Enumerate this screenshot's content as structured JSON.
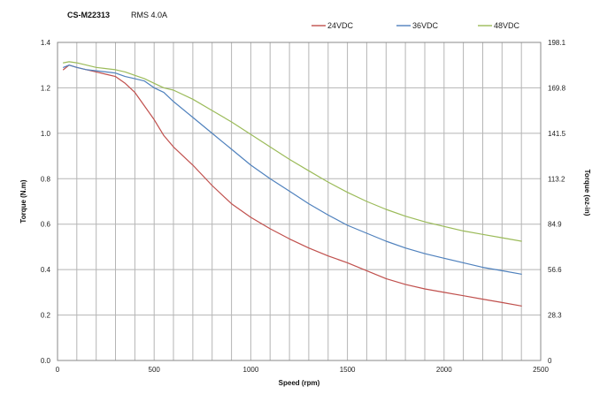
{
  "header": {
    "model": "CS-M22313",
    "rms": "RMS 4.0A"
  },
  "chart_data": {
    "type": "line",
    "xlabel": "Speed (rpm)",
    "ylabel": "Torque (N.m)",
    "y2label": "Torque (oz-in)",
    "xlim": [
      0,
      2500
    ],
    "ylim": [
      0,
      1.4
    ],
    "x_ticks": [
      "0",
      "500",
      "1000",
      "1500",
      "2000",
      "2500"
    ],
    "y_ticks": [
      "0.0",
      "0.2",
      "0.4",
      "0.6",
      "0.8",
      "1.0",
      "1.2",
      "1.4"
    ],
    "y2_ticks": [
      "0",
      "28.3",
      "56.6",
      "84.9",
      "113.2",
      "141.5",
      "169.8",
      "198.1"
    ],
    "grid": true,
    "legend_position": "top",
    "series": [
      {
        "name": "24VDC",
        "color": "#c0504d",
        "x": [
          30,
          60,
          100,
          150,
          200,
          250,
          300,
          350,
          400,
          450,
          500,
          550,
          600,
          700,
          800,
          900,
          1000,
          1100,
          1200,
          1300,
          1400,
          1500,
          1600,
          1700,
          1800,
          1900,
          2000,
          2100,
          2200,
          2300,
          2400
        ],
        "y": [
          1.28,
          1.3,
          1.29,
          1.28,
          1.27,
          1.26,
          1.25,
          1.22,
          1.18,
          1.12,
          1.06,
          0.99,
          0.94,
          0.86,
          0.77,
          0.69,
          0.63,
          0.58,
          0.535,
          0.495,
          0.46,
          0.43,
          0.395,
          0.36,
          0.335,
          0.315,
          0.3,
          0.285,
          0.27,
          0.255,
          0.24
        ]
      },
      {
        "name": "36VDC",
        "color": "#4f81bd",
        "x": [
          30,
          60,
          100,
          150,
          200,
          250,
          300,
          350,
          400,
          450,
          500,
          550,
          600,
          700,
          800,
          900,
          1000,
          1100,
          1200,
          1300,
          1400,
          1500,
          1600,
          1700,
          1800,
          1900,
          2000,
          2100,
          2200,
          2300,
          2400
        ],
        "y": [
          1.29,
          1.3,
          1.29,
          1.28,
          1.275,
          1.27,
          1.265,
          1.25,
          1.24,
          1.23,
          1.2,
          1.18,
          1.14,
          1.07,
          1.0,
          0.93,
          0.86,
          0.8,
          0.745,
          0.69,
          0.64,
          0.595,
          0.56,
          0.525,
          0.495,
          0.47,
          0.45,
          0.43,
          0.41,
          0.395,
          0.38
        ]
      },
      {
        "name": "48VDC",
        "color": "#9bbb59",
        "x": [
          30,
          60,
          100,
          150,
          200,
          250,
          300,
          350,
          400,
          450,
          500,
          550,
          600,
          700,
          800,
          900,
          1000,
          1100,
          1200,
          1300,
          1400,
          1500,
          1600,
          1700,
          1800,
          1900,
          2000,
          2100,
          2200,
          2300,
          2400
        ],
        "y": [
          1.31,
          1.315,
          1.31,
          1.3,
          1.29,
          1.285,
          1.28,
          1.27,
          1.255,
          1.24,
          1.22,
          1.2,
          1.19,
          1.15,
          1.1,
          1.05,
          0.995,
          0.94,
          0.885,
          0.835,
          0.785,
          0.74,
          0.7,
          0.665,
          0.635,
          0.61,
          0.59,
          0.57,
          0.555,
          0.54,
          0.525
        ]
      }
    ]
  }
}
